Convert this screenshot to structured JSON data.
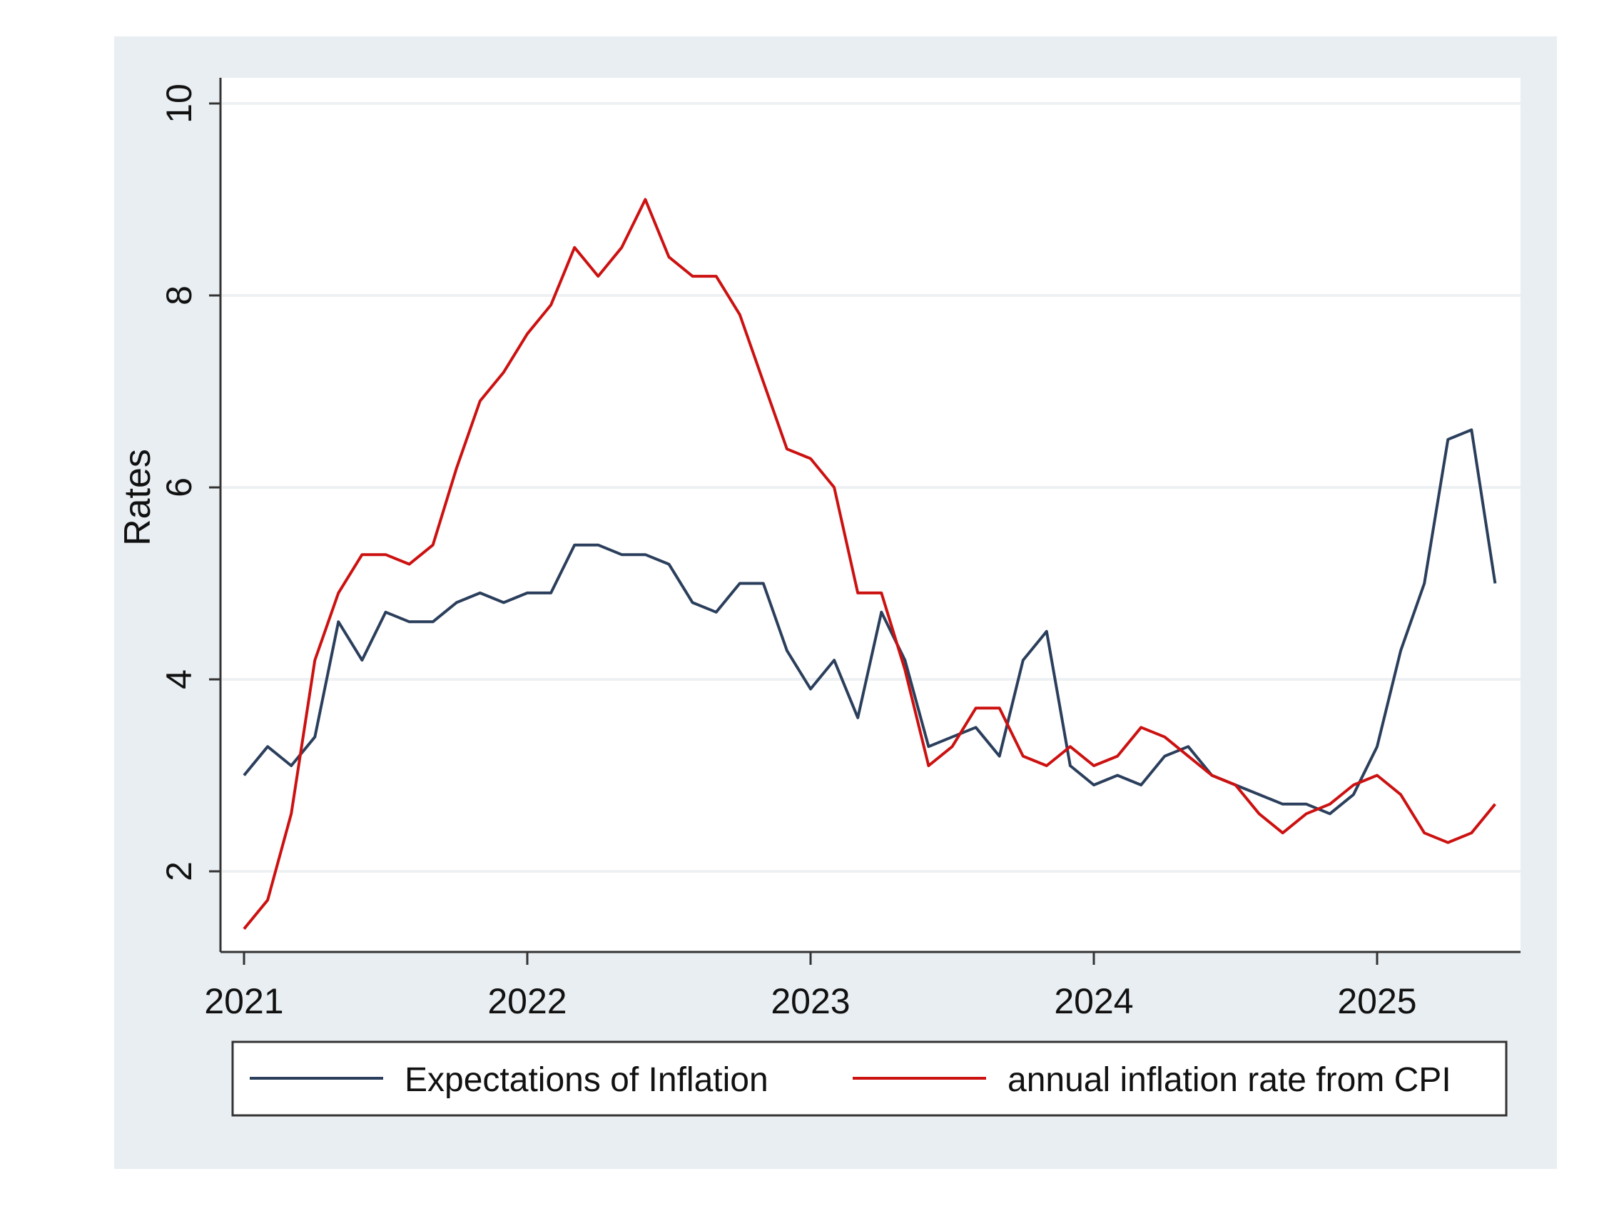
{
  "chart_data": {
    "type": "line",
    "title": "",
    "xlabel": "",
    "ylabel": "Rates",
    "x_ticks": [
      "2021",
      "2022",
      "2023",
      "2024",
      "2025"
    ],
    "y_ticks": [
      "2",
      "4",
      "6",
      "8",
      "10"
    ],
    "ylim": [
      1.2,
      10.3
    ],
    "xlim": [
      "2020-12",
      "2025-07"
    ],
    "grid": true,
    "legend_position": "bottom",
    "x": [
      "2021-01",
      "2021-02",
      "2021-03",
      "2021-04",
      "2021-05",
      "2021-06",
      "2021-07",
      "2021-08",
      "2021-09",
      "2021-10",
      "2021-11",
      "2021-12",
      "2022-01",
      "2022-02",
      "2022-03",
      "2022-04",
      "2022-05",
      "2022-06",
      "2022-07",
      "2022-08",
      "2022-09",
      "2022-10",
      "2022-11",
      "2022-12",
      "2023-01",
      "2023-02",
      "2023-03",
      "2023-04",
      "2023-05",
      "2023-06",
      "2023-07",
      "2023-08",
      "2023-09",
      "2023-10",
      "2023-11",
      "2023-12",
      "2024-01",
      "2024-02",
      "2024-03",
      "2024-04",
      "2024-05",
      "2024-06",
      "2024-07",
      "2024-08",
      "2024-09",
      "2024-10",
      "2024-11",
      "2024-12",
      "2025-01",
      "2025-02",
      "2025-03",
      "2025-04",
      "2025-05",
      "2025-06"
    ],
    "series": [
      {
        "name": "Expectations of Inflation",
        "color": "#2b3f5c",
        "values": [
          3.0,
          3.3,
          3.1,
          3.4,
          4.6,
          4.2,
          4.7,
          4.6,
          4.6,
          4.8,
          4.9,
          4.8,
          4.9,
          4.9,
          5.4,
          5.4,
          5.3,
          5.3,
          5.2,
          4.8,
          4.7,
          5.0,
          5.0,
          4.3,
          3.9,
          4.2,
          3.6,
          4.7,
          4.2,
          3.3,
          3.4,
          3.5,
          3.2,
          4.2,
          4.5,
          3.1,
          2.9,
          3.0,
          2.9,
          3.2,
          3.3,
          3.0,
          2.9,
          2.8,
          2.7,
          2.7,
          2.6,
          2.8,
          3.3,
          4.3,
          5.0,
          6.5,
          6.6,
          5.0
        ]
      },
      {
        "name": "annual inflation rate from CPI",
        "color": "#cc1111",
        "values": [
          1.4,
          1.7,
          2.6,
          4.2,
          4.9,
          5.3,
          5.3,
          5.2,
          5.4,
          6.2,
          6.9,
          7.2,
          7.6,
          7.9,
          8.5,
          8.2,
          8.5,
          9.0,
          8.4,
          8.2,
          8.2,
          7.8,
          7.1,
          6.4,
          6.3,
          6.0,
          4.9,
          4.9,
          4.1,
          3.1,
          3.3,
          3.7,
          3.7,
          3.2,
          3.1,
          3.3,
          3.1,
          3.2,
          3.5,
          3.4,
          3.2,
          3.0,
          2.9,
          2.6,
          2.4,
          2.6,
          2.7,
          2.9,
          3.0,
          2.8,
          2.4,
          2.3,
          2.4,
          2.7
        ]
      }
    ],
    "background_color": "#e9eef2",
    "plot_background_color": "#ffffff"
  }
}
